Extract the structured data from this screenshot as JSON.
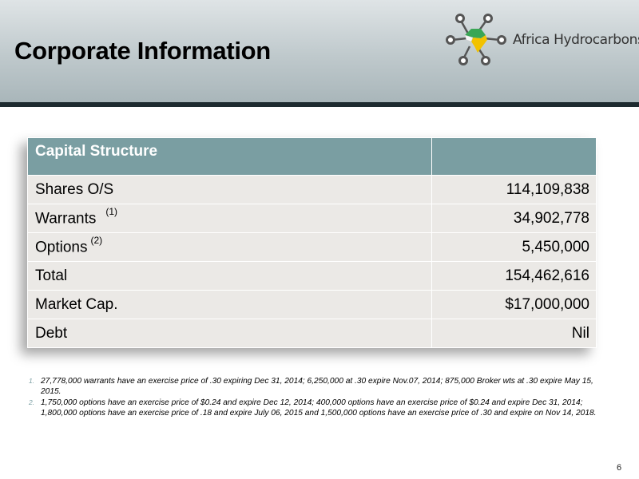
{
  "header": {
    "title": "Corporate Information",
    "logo_text": "Africa Hydrocarbons",
    "logo_icon": "africa-network-logo-icon",
    "accent_color": "#7a9ea2"
  },
  "table": {
    "header": [
      "Capital Structure",
      ""
    ],
    "rows": [
      {
        "label": "Shares O/S",
        "ref": "",
        "value": "114,109,838"
      },
      {
        "label": "Warrants",
        "ref": "(1)",
        "value": "34,902,778"
      },
      {
        "label": "Options",
        "ref": "(2)",
        "value": "5,450,000"
      },
      {
        "label": "Total",
        "ref": "",
        "value": "154,462,616"
      },
      {
        "label": "Market Cap.",
        "ref": "",
        "value": "$17,000,000"
      },
      {
        "label": "Debt",
        "ref": "",
        "value": "Nil"
      }
    ]
  },
  "footnotes": [
    {
      "num": "1.",
      "text": "27,778,000 warrants have an exercise price of .30  expiring Dec 31, 2014; 6,250,000 at .30 expire Nov.07, 2014; 875,000 Broker wts  at .30 expire May 15, 2015."
    },
    {
      "num": "2.",
      "text": "1,750,000 options have an exercise price of $0.24 and expire Dec 12, 2014; 400,000 options have an exercise price of $0.24 and expire Dec 31, 2014; 1,800,000 options have an exercise price of .18 and expire July 06, 2015 and 1,500,000 options have an exercise price of .30 and expire on Nov 14, 2018."
    }
  ],
  "page_number": "6"
}
